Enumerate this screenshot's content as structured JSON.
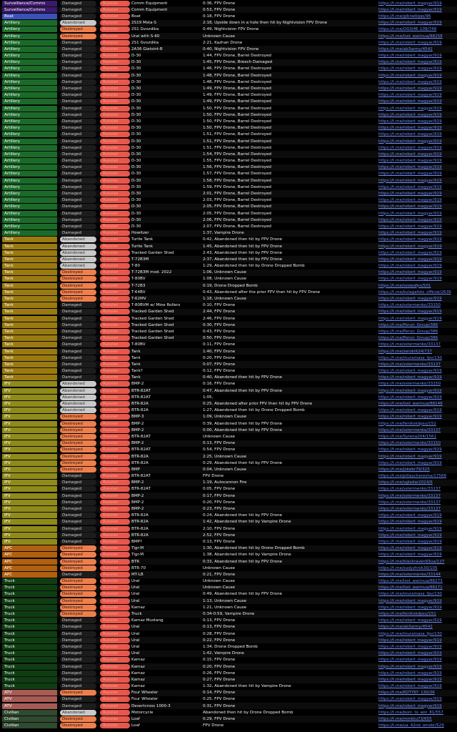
{
  "colors": {
    "Surveillance/Comms": "#3b1a6b",
    "Boat": "#3a52b8",
    "Artillery": "#1c6a2a",
    "Tank": "#9a7a10",
    "IFV": "#8f8a1a",
    "APC": "#b0600f",
    "Truck": "#0f3d12",
    "ATV": "#a85a55",
    "Civilian": "#2f4a2f"
  },
  "rows": [
    [
      "Surveillance/Comms",
      "Damaged",
      "Russian",
      "Comm Equipment",
      "0:36, FPV Drone",
      "https://t.me/robert_magyar/919"
    ],
    [
      "Surveillance/Comms",
      "Damaged",
      "Russian",
      "Comm Equipment",
      "0:53, FPV Drone",
      "https://t.me/robert_magyar/919"
    ],
    [
      "Boat",
      "Damaged",
      "Russian",
      "Boat",
      "0:18, FPV Drone",
      "https://t.me/gibradiqqs/96"
    ],
    [
      "Artillery",
      "Abandoned",
      "Russian",
      "2S19 Msta-S",
      "2:18, Upside down in a hole then hit by Nightvision FPV Drone",
      "https://t.me/robert_magyar/919"
    ],
    [
      "Artillery",
      "Destroyed",
      "Russian",
      "2S1 Gvozdika",
      "0:49, Nightvision FPV Drone",
      "https://t.me/OGSHB_109/749"
    ],
    [
      "Artillery",
      "Destroyed",
      "Russian",
      "Ural with S-60",
      "Unknown Cause",
      "https://t.me/lost_warinua/88258"
    ],
    [
      "Artillery",
      "Damaged",
      "Russian",
      "2S1 Gvozdika",
      "2:21, Kazhan Drone",
      "https://t.me/robert_magyar/919"
    ],
    [
      "Artillery",
      "Damaged",
      "Russian",
      "2A36 Giatsint-B",
      "0:40, Nightvision FPV Drone",
      "https://t.me/ab3army/4542"
    ],
    [
      "Artillery",
      "Damaged",
      "Russian",
      "D-30",
      "1:44, FPV Drone, Barrel Destroyed",
      "https://t.me/robert_magyar/919"
    ],
    [
      "Artillery",
      "Damaged",
      "Russian",
      "D-30",
      "1:45, FPV Drone, Breech Damaged",
      "https://t.me/robert_magyar/919"
    ],
    [
      "Artillery",
      "Damaged",
      "Russian",
      "D-30",
      "1:46, FPV Drone, Barrel Destroyed",
      "https://t.me/robert_magyar/919"
    ],
    [
      "Artillery",
      "Damaged",
      "Russian",
      "D-30",
      "1:48, FPV Drone, Barrel Destroyed",
      "https://t.me/robert_magyar/919"
    ],
    [
      "Artillery",
      "Damaged",
      "Russian",
      "D-30",
      "1:48, FPV Drone, Barrel Destroyed",
      "https://t.me/robert_magyar/919"
    ],
    [
      "Artillery",
      "Damaged",
      "Russian",
      "D-30",
      "1:49, FPV Drone, Barrel Destroyed",
      "https://t.me/robert_magyar/919"
    ],
    [
      "Artillery",
      "Damaged",
      "Russian",
      "D-30",
      "1:49, FPV Drone, Barrel Destroyed",
      "https://t.me/robert_magyar/919"
    ],
    [
      "Artillery",
      "Damaged",
      "Russian",
      "D-30",
      "1:49, FPV Drone, Barrel Destroyed",
      "https://t.me/robert_magyar/919"
    ],
    [
      "Artillery",
      "Damaged",
      "Russian",
      "D-30",
      "1:50, FPV Drone, Barrel Destroyed",
      "https://t.me/robert_magyar/919"
    ],
    [
      "Artillery",
      "Damaged",
      "Russian",
      "D-30",
      "1:50, FPV Drone, Barrel Destroyed",
      "https://t.me/robert_magyar/919"
    ],
    [
      "Artillery",
      "Damaged",
      "Russian",
      "D-30",
      "1:50, FPV Drone, Barrel Destroyed",
      "https://t.me/robert_magyar/919"
    ],
    [
      "Artillery",
      "Damaged",
      "Russian",
      "D-30",
      "1:50, FPV Drone, Barrel Destroyed",
      "https://t.me/robert_magyar/919"
    ],
    [
      "Artillery",
      "Damaged",
      "Russian",
      "D-30",
      "1:51, FPV Drone, Barrel Destroyed",
      "https://t.me/robert_magyar/919"
    ],
    [
      "Artillery",
      "Damaged",
      "Russian",
      "D-30",
      "1:51, FPV Drone, Barrel Destroyed",
      "https://t.me/robert_magyar/919"
    ],
    [
      "Artillery",
      "Damaged",
      "Russian",
      "D-30",
      "1:51, FPV Drone, Barrel Destroyed",
      "https://t.me/robert_magyar/919"
    ],
    [
      "Artillery",
      "Damaged",
      "Russian",
      "D-30",
      "1:54, FPV Drone, Barrel Destroyed",
      "https://t.me/robert_magyar/919"
    ],
    [
      "Artillery",
      "Damaged",
      "Russian",
      "D-30",
      "1:55, FPV Drone, Barrel Destroyed",
      "https://t.me/robert_magyar/919"
    ],
    [
      "Artillery",
      "Damaged",
      "Russian",
      "D-30",
      "1:56, FPV Drone, Barrel Destroyed",
      "https://t.me/robert_magyar/919"
    ],
    [
      "Artillery",
      "Damaged",
      "Russian",
      "D-30",
      "1:57, FPV Drone, Barrel Destroyed",
      "https://t.me/robert_magyar/919"
    ],
    [
      "Artillery",
      "Damaged",
      "Russian",
      "D-30",
      "1:58, FPV Drone, Barrel Destroyed",
      "https://t.me/robert_magyar/919"
    ],
    [
      "Artillery",
      "Damaged",
      "Russian",
      "D-30",
      "1:59, FPV Drone, Barrel Destroyed",
      "https://t.me/robert_magyar/919"
    ],
    [
      "Artillery",
      "Damaged",
      "Russian",
      "D-30",
      "2:01, FPV Drone, Barrel Destroyed",
      "https://t.me/robert_magyar/919"
    ],
    [
      "Artillery",
      "Damaged",
      "Russian",
      "D-30",
      "2:03, FPV Drone, Barrel Destroyed",
      "https://t.me/robert_magyar/919"
    ],
    [
      "Artillery",
      "Damaged",
      "Russian",
      "D-30",
      "2:05, FPV Drone, Barrel Destroyed",
      "https://t.me/robert_magyar/919"
    ],
    [
      "Artillery",
      "Damaged",
      "Russian",
      "D-30",
      "2:05, FPV Drone, Barrel Destroyed",
      "https://t.me/robert_magyar/919"
    ],
    [
      "Artillery",
      "Damaged",
      "Russian",
      "D-30",
      "2:06, FPV Drone, Barrel Destroyed",
      "https://t.me/robert_magyar/919"
    ],
    [
      "Artillery",
      "Damaged",
      "Russian",
      "D-30",
      "2:07, FPV Drone, Barrel Destroyed",
      "https://t.me/robert_magyar/919"
    ],
    [
      "Artillery",
      "Damaged",
      "Russian",
      "Howitzer",
      "1:37, Vampire Drone",
      "https://t.me/robert_magyar/919"
    ],
    [
      "Tank",
      "Abandoned",
      "Russian",
      "Turtle Tank",
      "0:42, Abandoned then hit by FPV Drone",
      "https://t.me/robert_magyar/919"
    ],
    [
      "Tank",
      "Abandoned",
      "Russian",
      "Turtle Tank",
      "1:45, Abandoned then hit by FPV Drone",
      "https://t.me/robert_magyar/919"
    ],
    [
      "Tank",
      "Abandoned",
      "Russian",
      "Tracked Garden Shed",
      "2:43, Abandoned then hit by FPV Drone",
      "https://t.me/robert_magyar/919"
    ],
    [
      "Tank",
      "Abandoned",
      "Russian",
      "T-72B3M",
      "2:37, Abandoned then hit by FPV Drone",
      "https://t.me/robert_magyar/919"
    ],
    [
      "Tank",
      "Abandoned",
      "Russian",
      "T-80",
      "1:29, Abandoned then hit by Drone Dropped Bomb",
      "https://t.me/robert_magyar/919"
    ],
    [
      "Tank",
      "Destroyed",
      "Russian",
      "T-72B3M mod. 2022",
      "1:06, Unknown Cause",
      "https://t.me/robert_magyar/919"
    ],
    [
      "Tank",
      "Destroyed",
      "Russian",
      "T-80BV",
      "1:08, Unknown Cause",
      "https://t.me/robert_magyar/919"
    ],
    [
      "Tank",
      "Destroyed",
      "Russian",
      "T-72B3",
      "0:19, Drone Dropped Bomb",
      "https://t.me/ssowafpv/501"
    ],
    [
      "Tank",
      "Destroyed",
      "Russian",
      "T-64BV",
      "0:43, Abandoned after the prior FPV then hit by FPV Drone",
      "https://t.me/kulagafoto_official/2639"
    ],
    [
      "Tank",
      "Destroyed",
      "Russian",
      "T-62MV",
      "1:18, Unknown Cause",
      "https://t.me/robert_magyar/919"
    ],
    [
      "Tank",
      "Damaged",
      "Russian",
      "T-80BVM w/ Mine Rollers",
      "0:10, FPV Drone",
      "https://t.me/sstermenko/33150"
    ],
    [
      "Tank",
      "Damaged",
      "Russian",
      "Tracked Garden Shed",
      "2:44, FPV Drone",
      "https://t.me/robert_magyar/919"
    ],
    [
      "Tank",
      "Damaged",
      "Russian",
      "Tracked Garden Shed",
      "2:46, FPV Drone",
      "https://t.me/robert_magyar/919"
    ],
    [
      "Tank",
      "Damaged",
      "Russian",
      "Tracked Garden Shed",
      "0:30, FPV Drone",
      "https://t.me/Perun_Group/386"
    ],
    [
      "Tank",
      "Damaged",
      "Russian",
      "Tracked Garden Shed",
      "0:43, FPV Drone",
      "https://t.me/Perun_Group/386"
    ],
    [
      "Tank",
      "Damaged",
      "Russian",
      "Tracked Garden Shed",
      "0:50, FPV Drone",
      "https://t.me/Perun_Group/386"
    ],
    [
      "Tank",
      "Damaged",
      "Russian",
      "T-80BV",
      "0:11, FPV Drone",
      "https://t.me/sstermenko/33137"
    ],
    [
      "Tank",
      "Damaged",
      "Russian",
      "Tank",
      "1:40, FPV Drone",
      "https://t.me/zerokilt24/737"
    ],
    [
      "Tank",
      "Damaged",
      "Russian",
      "Tank",
      "0:20, FPV Drone",
      "https://t.me/muramasa_fpv/130"
    ],
    [
      "Tank",
      "Damaged",
      "Russian",
      "Tank",
      "0:07, FPV Drone",
      "https://t.me/sstermenko/33137"
    ],
    [
      "Tank",
      "Damaged",
      "Russian",
      "Tank?",
      "0:12, FPV Drone",
      "https://t.me/robert_magyar/919"
    ],
    [
      "Tank",
      "Damaged",
      "Russian",
      "Tank",
      "0:40, Abandoned then hit by FPV Drone",
      "https://t.me/robert_magyar/919"
    ],
    [
      "IFV",
      "Abandoned",
      "Russian",
      "BMP-2",
      "0:16, FPV Drone",
      "https://t.me/sstermenko/33150"
    ],
    [
      "IFV",
      "Abandoned",
      "Russian",
      "BTR-82AT",
      "0:47, Abandoned then hit by FPV Drone",
      "https://t.me/robert_magyar/919"
    ],
    [
      "IFV",
      "Abandoned",
      "Russian",
      "BTR-82AT",
      "1:05,",
      "https://t.me/robert_magyar/919"
    ],
    [
      "IFV",
      "Abandoned",
      "Russian",
      "BTR-82A",
      "0:25, Abandoned after prior FPV then hit by FPV Drone",
      "https://t.me/lost_warinua/88248"
    ],
    [
      "IFV",
      "Abandoned",
      "Russian",
      "BTR-82A",
      "1:27, Abandoned then hit by Drone Dropped Bomb",
      "https://t.me/robert_magyar/919"
    ],
    [
      "IFV",
      "Destroyed",
      "Russian",
      "BMP-3",
      "1:09, Unknown Cause",
      "https://t.me/robert_magyar/919"
    ],
    [
      "IFV",
      "Destroyed",
      "Russian",
      "BMP-2",
      "0:39, Abandoned then hit by FPV Drone",
      "https://t.me/fenikskdpsu/152"
    ],
    [
      "IFV",
      "Destroyed",
      "Russian",
      "BMP-2",
      "0:00, Abandoned then hit by FPV Drone",
      "https://t.me/sstermenko/33137"
    ],
    [
      "IFV",
      "Destroyed",
      "Russian",
      "BTR-82AT",
      "Unknown Cause",
      "https://t.me/Syrena204/1561"
    ],
    [
      "IFV",
      "Destroyed",
      "Russian",
      "BMP-2",
      "0:13, FPV Drone",
      "https://t.me/sstermenko/33150"
    ],
    [
      "IFV",
      "Destroyed",
      "Russian",
      "BTR-82AT",
      "0:54, FPV Drone",
      "https://t.me/robert_magyar/919"
    ],
    [
      "IFV",
      "Destroyed",
      "Russian",
      "BTR-82A",
      "2:25, Unknown Cause",
      "https://t.me/robert_magyar/919"
    ],
    [
      "IFV",
      "Destroyed",
      "Russian",
      "BTR-82A",
      "0:29, Abandoned then hit by FPV Drone",
      "https://t.me/robert_magyar/919"
    ],
    [
      "IFV",
      "Destroyed",
      "Russian",
      "BMP",
      "0:04, Unknown Cause",
      "https://t.me/jokebr79/325"
    ],
    [
      "IFV",
      "Damaged",
      "Russian",
      "BTR-82AT",
      "FPV Drone",
      "https://t.me/pillaycheresha/17568"
    ],
    [
      "IFV",
      "Damaged",
      "Russian",
      "BMP-2",
      "1:19, Autocannon Fire",
      "https://t.me/ugledar2024/6"
    ],
    [
      "IFV",
      "Damaged",
      "Russian",
      "BTR-82AT",
      "0:05, FPV Drone",
      "https://t.me/sstermenko/33137"
    ],
    [
      "IFV",
      "Damaged",
      "Russian",
      "BMP-2",
      "0:17, FPV Drone",
      "https://t.me/sstermenko/33137"
    ],
    [
      "IFV",
      "Damaged",
      "Russian",
      "BMP-2",
      "0:20, FPV Drone",
      "https://t.me/sstermenko/33137"
    ],
    [
      "IFV",
      "Damaged",
      "Russian",
      "BMP-2",
      "0:23, FPV Drone",
      "https://t.me/sstermenko/33137"
    ],
    [
      "IFV",
      "Damaged",
      "Russian",
      "BTR-82A",
      "0:24, Abandoned then hit by FPV Drone",
      "https://t.me/robert_magyar/919"
    ],
    [
      "IFV",
      "Damaged",
      "Russian",
      "BTR-82A",
      "1:42, Abandoned then hit by Vampire Drone",
      "https://t.me/robert_magyar/919"
    ],
    [
      "IFV",
      "Damaged",
      "Russian",
      "BTR-82A",
      "2:10, FPV Drone",
      "https://t.me/robert_magyar/919"
    ],
    [
      "IFV",
      "Damaged",
      "Russian",
      "BTR-82A",
      "2:52, FPV Drone",
      "https://t.me/robert_magyar/919"
    ],
    [
      "IFV",
      "Damaged",
      "Russian",
      "BMP?",
      "0:13, FPV Drone",
      "https://t.me/robert_magyar/919"
    ],
    [
      "APC",
      "Destroyed",
      "Russian",
      "Tigr-M",
      "1:30, Abandoned then hit by Drone Dropped Bomb",
      "https://t.me/robert_magyar/919"
    ],
    [
      "APC",
      "Destroyed",
      "Russian",
      "Tigr-M",
      "1:38, Abandoned then hit by Vampire Drone",
      "https://t.me/robert_magyar/919"
    ],
    [
      "APC",
      "Destroyed",
      "Russian",
      "BTR",
      "0:33, Abandoned then hit by FPV Drone",
      "https://t.me/blackraven93ua/127"
    ],
    [
      "APC",
      "Destroyed",
      "Russian",
      "BTR-70",
      "Unknown Cause",
      "https://t.me/sudyzhnik30/105"
    ],
    [
      "APC",
      "Damaged",
      "Russian",
      "MT-LB",
      "0:21, FPV Drone",
      "https://t.me/sstermenko/33144"
    ],
    [
      "Truck",
      "Destroyed",
      "Russian",
      "Ural",
      "Unknown Cause",
      "https://t.me/lost_warinua/88273"
    ],
    [
      "Truck",
      "Destroyed",
      "Russian",
      "Ural",
      "Unknown Cause",
      "https://t.me/lost_warinua/88271"
    ],
    [
      "Truck",
      "Destroyed",
      "Russian",
      "Ural",
      "0:49, Abandoned then hit by FPV Drone",
      "https://t.me/muramasa_fpv/130"
    ],
    [
      "Truck",
      "Destroyed",
      "Russian",
      "Ural",
      "1:13, Unknown Cause",
      "https://t.me/robert_magyar/919"
    ],
    [
      "Truck",
      "Destroyed",
      "Russian",
      "Kamaz",
      "1:21, Unknown Cause",
      "https://t.me/robert_magyar/919"
    ],
    [
      "Truck",
      "Destroyed",
      "Russian",
      "Truck",
      "0:34-0:59, Vampire Drone",
      "https://t.me/fenikskdpsu/151"
    ],
    [
      "Truck",
      "Damaged",
      "Russian",
      "Kamaz Mustang",
      "0:13, FPV Drone",
      "https://t.me/robert_magyar/919"
    ],
    [
      "Truck",
      "Damaged",
      "Russian",
      "Ural",
      "0:13, FPV Drone",
      "https://t.me/ab3army/4542"
    ],
    [
      "Truck",
      "Damaged",
      "Russian",
      "Ural",
      "0:28, FPV Drone",
      "https://t.me/muramasa_fpv/130"
    ],
    [
      "Truck",
      "Damaged",
      "Russian",
      "Ural",
      "0:22, FPV Drone",
      "https://t.me/robert_magyar/919"
    ],
    [
      "Truck",
      "Damaged",
      "Russian",
      "Ural",
      "1:34, Drone Dropped Bomb",
      "https://t.me/robert_magyar/919"
    ],
    [
      "Truck",
      "Damaged",
      "Russian",
      "Ural",
      "1:42, Vampire Drone",
      "https://t.me/robert_magyar/919"
    ],
    [
      "Truck",
      "Damaged",
      "Russian",
      "Kamaz",
      "0:15, FPV Drone",
      "https://t.me/robert_magyar/919"
    ],
    [
      "Truck",
      "Damaged",
      "Russian",
      "Kamaz",
      "0:20, FPV Drone",
      "https://t.me/robert_magyar/919"
    ],
    [
      "Truck",
      "Damaged",
      "Russian",
      "Kamaz",
      "0:26, FPV Drone",
      "https://t.me/robert_magyar/919"
    ],
    [
      "Truck",
      "Damaged",
      "Russian",
      "Kamaz",
      "0:27, FPV Drone",
      "https://t.me/robert_magyar/919"
    ],
    [
      "Truck",
      "Damaged",
      "Russian",
      "Kamaz",
      "1:32, Abandoned then hit by Vampire Drone",
      "https://t.me/robert_magyar/919"
    ],
    [
      "ATV",
      "Destroyed",
      "Russian",
      "Four Wheeler",
      "0:14, FPV Drone",
      "https://t.me/KOTYKY_130/36"
    ],
    [
      "ATV",
      "Damaged",
      "Russian",
      "Four Wheeler",
      "0:25, FPV Drone",
      "https://t.me/robert_magyar/919"
    ],
    [
      "ATV",
      "Damaged",
      "Russian",
      "Desertcross 1000-3",
      "0:31, FPV Drone",
      "https://t.me/robert_magyar/919"
    ],
    [
      "Civilian",
      "Abandoned",
      "Russian",
      "Motorcycle",
      "Abandoned then hit by Drone Dropped Bomb",
      "https://t.me/born_to_win_81/557"
    ],
    [
      "Civilian",
      "Destroyed",
      "Russian",
      "Loaf",
      "0:29, FPV Drone",
      "https://t.me/mmbtu73/655"
    ],
    [
      "Civilian",
      "Destroyed",
      "Russian",
      "Loaf",
      "FPV Drone",
      "https://t.me/ua_42nd_omsbr/529"
    ]
  ]
}
